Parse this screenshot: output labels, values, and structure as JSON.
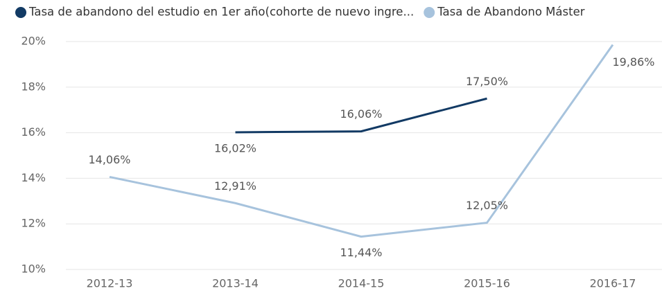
{
  "chart_data": {
    "type": "line",
    "categories": [
      "2012-13",
      "2013-14",
      "2014-15",
      "2015-16",
      "2016-17"
    ],
    "series": [
      {
        "name": "Tasa de abandono del estudio en 1er año(cohorte de nuevo ingre...",
        "color": "#123a64",
        "values": [
          null,
          16.02,
          16.06,
          17.5,
          null
        ],
        "value_labels": [
          null,
          "16,02%",
          "16,06%",
          "17,50%",
          null
        ]
      },
      {
        "name": "Tasa de Abandono Máster",
        "color": "#a7c3dd",
        "values": [
          14.06,
          12.91,
          11.44,
          12.05,
          19.86
        ],
        "value_labels": [
          "14,06%",
          "12,91%",
          "11,44%",
          "12,05%",
          "19,86%"
        ]
      }
    ],
    "ylim": [
      10,
      20
    ],
    "yticks": [
      {
        "value": 10,
        "label": "10%"
      },
      {
        "value": 12,
        "label": "12%"
      },
      {
        "value": 14,
        "label": "14%"
      },
      {
        "value": 16,
        "label": "16%"
      },
      {
        "value": 18,
        "label": "18%"
      },
      {
        "value": 20,
        "label": "20%"
      }
    ],
    "grid": true
  }
}
